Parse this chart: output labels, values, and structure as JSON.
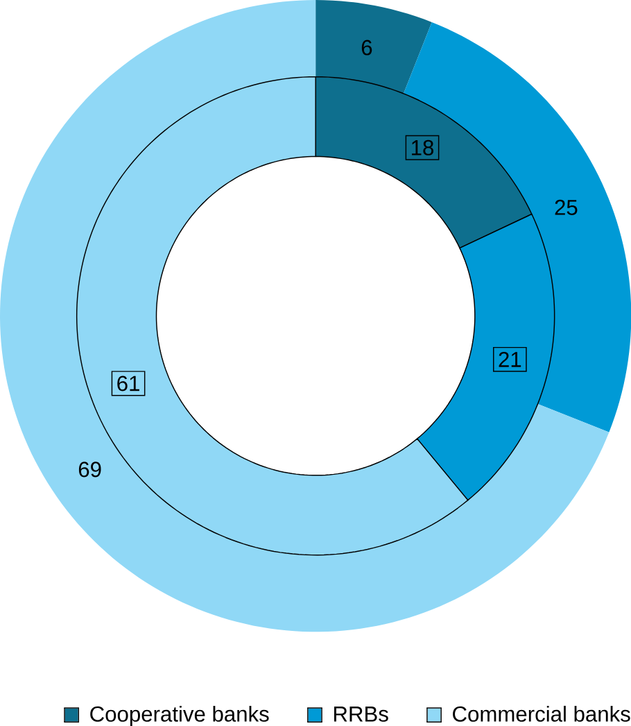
{
  "chart_data": {
    "type": "donut",
    "categories": [
      "Cooperative banks",
      "RRBs",
      "Commercial banks"
    ],
    "colors": [
      "#0e6f8e",
      "#009ad6",
      "#90d8f6"
    ],
    "series": [
      {
        "values": [
          6,
          25,
          69
        ]
      },
      {
        "values": [
          18,
          21,
          61
        ]
      }
    ],
    "data_labels": true,
    "legend": "bottom"
  }
}
